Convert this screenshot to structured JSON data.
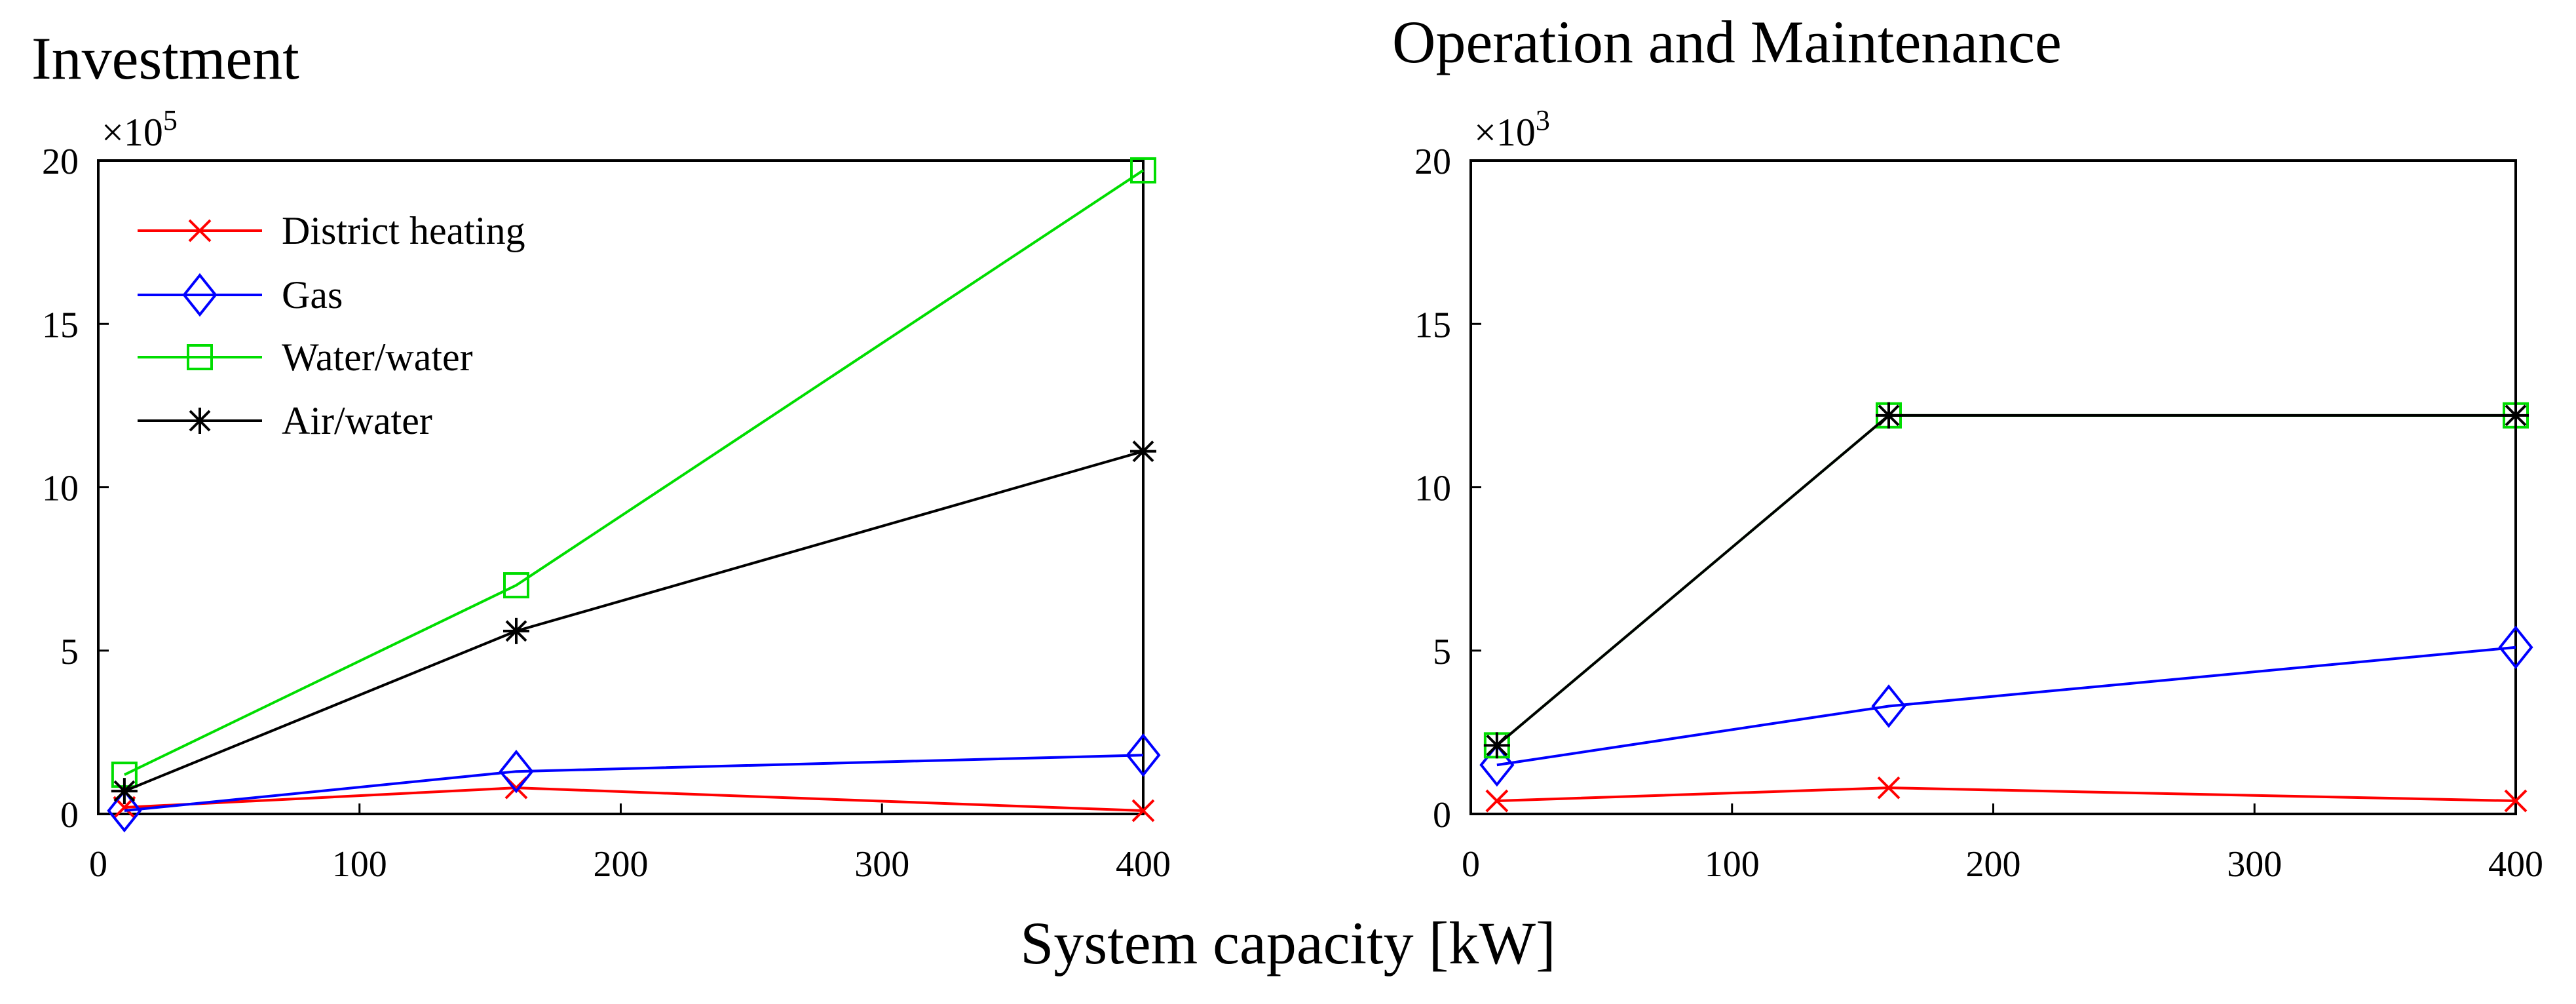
{
  "shared_xlabel": "System capacity  [kW]",
  "chart_data": [
    {
      "type": "line",
      "title": "Investment",
      "xlabel": "System capacity  [kW]",
      "ylabel": "",
      "y_multiplier_base": "×10",
      "y_multiplier_exp": "5",
      "xlim": [
        0,
        400
      ],
      "ylim": [
        0,
        20
      ],
      "x_ticks": [
        0,
        100,
        200,
        300,
        400
      ],
      "y_ticks": [
        0,
        5,
        10,
        15,
        20
      ],
      "grid": false,
      "legend_position": "top-left",
      "x": [
        10,
        160,
        400
      ],
      "series": [
        {
          "name": "District heating",
          "color": "#ff0000",
          "marker": "x",
          "values": [
            0.2,
            0.8,
            0.1
          ]
        },
        {
          "name": "Gas",
          "color": "#0000ff",
          "marker": "diamond",
          "values": [
            0.1,
            1.3,
            1.8
          ]
        },
        {
          "name": "Water/water",
          "color": "#00dd00",
          "marker": "square",
          "values": [
            1.2,
            7.0,
            19.7
          ]
        },
        {
          "name": "Air/water",
          "color": "#000000",
          "marker": "asterisk",
          "values": [
            0.7,
            5.6,
            11.1
          ]
        }
      ]
    },
    {
      "type": "line",
      "title": "Operation and Maintenance",
      "xlabel": "System capacity  [kW]",
      "ylabel": "",
      "y_multiplier_base": "×10",
      "y_multiplier_exp": "3",
      "xlim": [
        0,
        400
      ],
      "ylim": [
        0,
        20
      ],
      "x_ticks": [
        0,
        100,
        200,
        300,
        400
      ],
      "y_ticks": [
        0,
        5,
        10,
        15,
        20
      ],
      "grid": false,
      "legend_position": "none",
      "x": [
        10,
        160,
        400
      ],
      "series": [
        {
          "name": "District heating",
          "color": "#ff0000",
          "marker": "x",
          "values": [
            0.4,
            0.8,
            0.4
          ]
        },
        {
          "name": "Gas",
          "color": "#0000ff",
          "marker": "diamond",
          "values": [
            1.5,
            3.3,
            5.1
          ]
        },
        {
          "name": "Water/water",
          "color": "#00dd00",
          "marker": "square",
          "values": [
            2.1,
            12.2,
            12.2
          ]
        },
        {
          "name": "Air/water",
          "color": "#000000",
          "marker": "asterisk",
          "values": [
            2.1,
            12.2,
            12.2
          ]
        }
      ]
    }
  ]
}
